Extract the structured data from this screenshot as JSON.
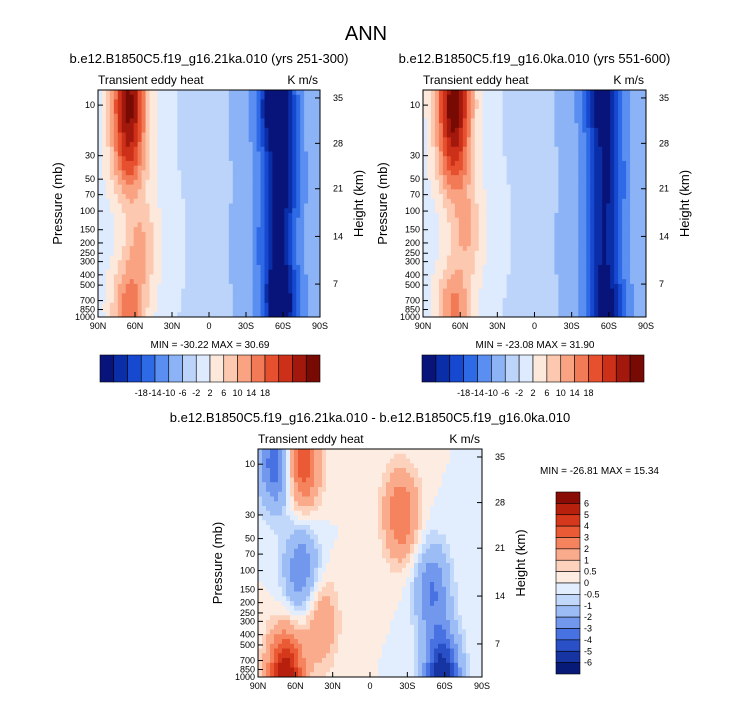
{
  "figure_title": "ANN",
  "panel_names": [
    "panel-case1",
    "panel-case2",
    "panel-diff"
  ],
  "chart_data": [
    {
      "type": "heatmap",
      "title": "b.e12.B1850C5.f19_g16.21ka.010 (yrs 251-300)",
      "subtitle_left": "Transient eddy heat",
      "subtitle_right": "K m/s",
      "xlabel": "",
      "ylabel": "Pressure (mb)",
      "ylabel_right": "Height (km)",
      "x_ticks": [
        "90N",
        "60N",
        "30N",
        "0",
        "30S",
        "60S",
        "90S"
      ],
      "y_ticks": [
        "10",
        "30",
        "50",
        "70",
        "100",
        "150",
        "200",
        "250",
        "300",
        "400",
        "500",
        "700",
        "850",
        "1000"
      ],
      "y_ticks_right": [
        "35",
        "28",
        "21",
        "14",
        "7"
      ],
      "stats": "MIN = -30.22   MAX = 30.69",
      "colorbar_labels": [
        "-18",
        "-14",
        "-10",
        "-6",
        "-2",
        "2",
        "6",
        "10",
        "14",
        "18"
      ],
      "colorbar_colors": [
        "#08147a",
        "#0a2ea8",
        "#1648d0",
        "#2e6ae6",
        "#5a8ef0",
        "#8cb3f6",
        "#bcd4fa",
        "#deeafd",
        "#fde8dc",
        "#fcc8b0",
        "#f9a383",
        "#f27a56",
        "#e6502e",
        "#cc3018",
        "#a3180c",
        "#780a04"
      ],
      "field_features": [
        {
          "lat": 65,
          "plev": 8,
          "value": 28
        },
        {
          "lat": 65,
          "plev": 30,
          "value": 19
        },
        {
          "lat": 55,
          "plev": 200,
          "value": 10
        },
        {
          "lat": 65,
          "plev": 850,
          "value": 16
        },
        {
          "lat": -55,
          "plev": 10,
          "value": -28
        },
        {
          "lat": -58,
          "plev": 50,
          "value": -19
        },
        {
          "lat": -55,
          "plev": 200,
          "value": -16
        },
        {
          "lat": -58,
          "plev": 850,
          "value": -24
        }
      ]
    },
    {
      "type": "heatmap",
      "title": "b.e12.B1850C5.f19_g16.0ka.010 (yrs 551-600)",
      "subtitle_left": "Transient eddy heat",
      "subtitle_right": "K m/s",
      "xlabel": "",
      "ylabel": "Pressure (mb)",
      "ylabel_right": "Height (km)",
      "x_ticks": [
        "90N",
        "60N",
        "30N",
        "0",
        "30S",
        "60S",
        "90S"
      ],
      "y_ticks": [
        "10",
        "30",
        "50",
        "70",
        "100",
        "150",
        "200",
        "250",
        "300",
        "400",
        "500",
        "700",
        "850",
        "1000"
      ],
      "y_ticks_right": [
        "35",
        "28",
        "21",
        "14",
        "7"
      ],
      "stats": "MIN = -23.08   MAX = 31.90",
      "colorbar_labels": [
        "-18",
        "-14",
        "-10",
        "-6",
        "-2",
        "2",
        "6",
        "10",
        "14",
        "18"
      ],
      "colorbar_colors": [
        "#08147a",
        "#0a2ea8",
        "#1648d0",
        "#2e6ae6",
        "#5a8ef0",
        "#8cb3f6",
        "#bcd4fa",
        "#deeafd",
        "#fde8dc",
        "#fcc8b0",
        "#f9a383",
        "#f27a56",
        "#e6502e",
        "#cc3018",
        "#a3180c",
        "#780a04"
      ],
      "field_features": [
        {
          "lat": 65,
          "plev": 8,
          "value": 30
        },
        {
          "lat": 65,
          "plev": 30,
          "value": 19
        },
        {
          "lat": 55,
          "plev": 150,
          "value": 10
        },
        {
          "lat": 65,
          "plev": 850,
          "value": 15
        },
        {
          "lat": -55,
          "plev": 10,
          "value": -22
        },
        {
          "lat": -58,
          "plev": 50,
          "value": -16
        },
        {
          "lat": -55,
          "plev": 200,
          "value": -14
        },
        {
          "lat": -58,
          "plev": 850,
          "value": -20
        }
      ]
    },
    {
      "type": "heatmap",
      "title": "b.e12.B1850C5.f19_g16.21ka.010 - b.e12.B1850C5.f19_g16.0ka.010",
      "subtitle_left": "Transient eddy heat",
      "subtitle_right": "K m/s",
      "xlabel": "",
      "ylabel": "Pressure (mb)",
      "ylabel_right": "Height (km)",
      "x_ticks": [
        "90N",
        "60N",
        "30N",
        "0",
        "30S",
        "60S",
        "90S"
      ],
      "y_ticks": [
        "10",
        "30",
        "50",
        "70",
        "100",
        "150",
        "200",
        "250",
        "300",
        "400",
        "500",
        "700",
        "850",
        "1000"
      ],
      "y_ticks_right": [
        "35",
        "28",
        "21",
        "14",
        "7"
      ],
      "stats": "MIN = -26.81   MAX = 15.34",
      "colorbar_labels": [
        "6",
        "5",
        "4",
        "3",
        "2",
        "1",
        "0.5",
        "0",
        "-0.5",
        "-1",
        "-2",
        "-3",
        "-4",
        "-5",
        "-6"
      ],
      "colorbar_colors": [
        "#8a0c06",
        "#b8200e",
        "#d6381c",
        "#ea5a34",
        "#f5845e",
        "#f9ab8c",
        "#fcd2bc",
        "#fdece2",
        "#e2edfd",
        "#c2d8fa",
        "#9cbcf6",
        "#7298ee",
        "#4872e2",
        "#2a50c8",
        "#1634a2",
        "#081a78"
      ],
      "field_features": [
        {
          "lat": 75,
          "plev": 10,
          "value": -4
        },
        {
          "lat": 55,
          "plev": 10,
          "value": 4
        },
        {
          "lat": 55,
          "plev": 100,
          "value": -3
        },
        {
          "lat": 40,
          "plev": 300,
          "value": 2
        },
        {
          "lat": -25,
          "plev": 30,
          "value": 3
        },
        {
          "lat": -50,
          "plev": 150,
          "value": -3
        },
        {
          "lat": -58,
          "plev": 1000,
          "value": -6
        },
        {
          "lat": 68,
          "plev": 1000,
          "value": 6
        }
      ]
    }
  ]
}
